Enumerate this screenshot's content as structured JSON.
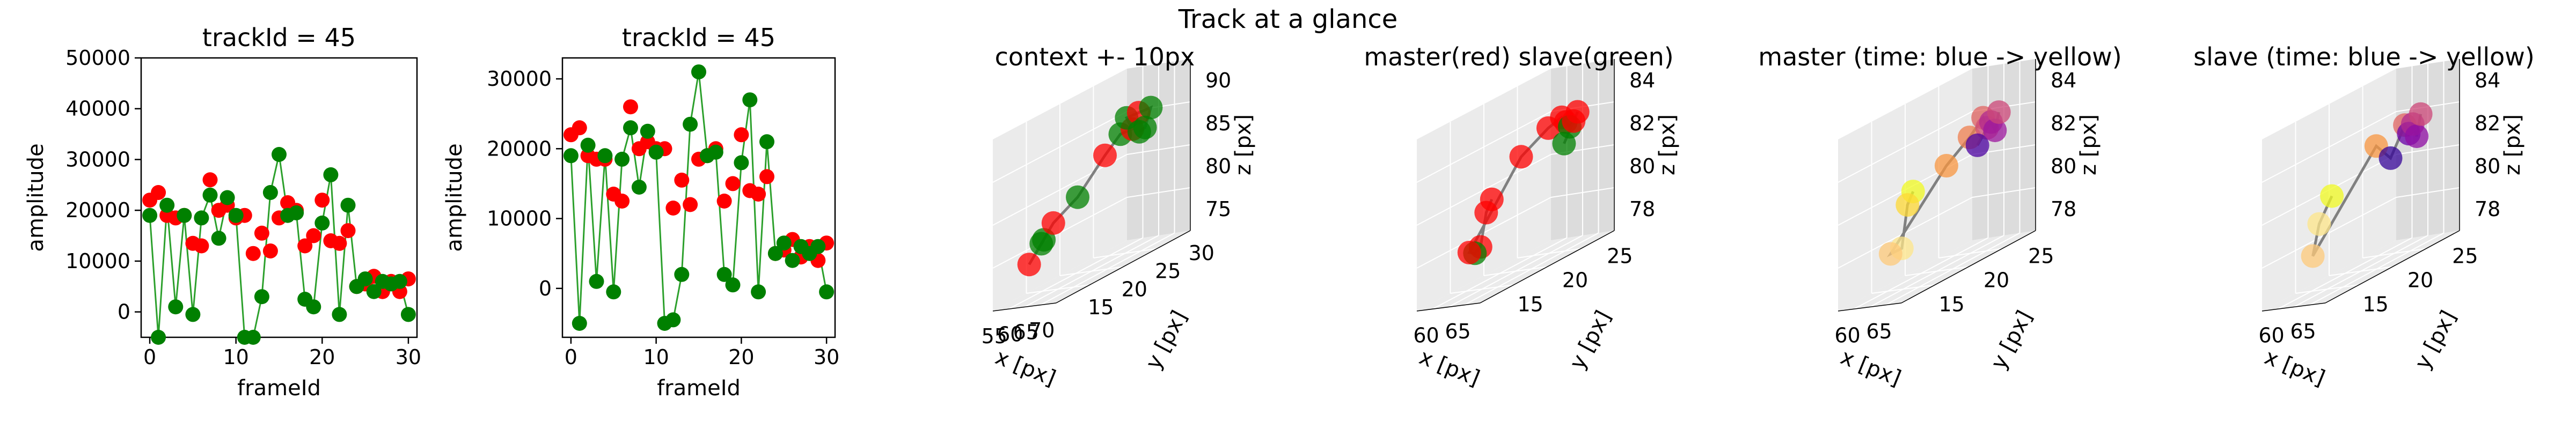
{
  "figure_title": "Track at a glance",
  "colors": {
    "red": "#ff0000",
    "green": "#008000",
    "line": "#2ca02c",
    "track": "#808080",
    "pane": "#ebebeb",
    "pane_dark": "#dcdcdc",
    "grid": "#ffffff"
  },
  "chart_data": [
    {
      "type": "scatter",
      "title": "trackId = 45",
      "xlabel": "frameId",
      "ylabel": "amplitude",
      "xlim": [
        -1,
        31
      ],
      "ylim": [
        -5000,
        50000
      ],
      "xticks": [
        0,
        10,
        20,
        30
      ],
      "yticks": [
        0,
        10000,
        20000,
        30000,
        40000,
        50000
      ],
      "series": [
        {
          "color": "red",
          "marker": "circle",
          "line": false,
          "x": [
            0,
            1,
            2,
            3,
            4,
            5,
            6,
            7,
            8,
            9,
            10,
            11,
            12,
            13,
            14,
            15,
            16,
            17,
            18,
            19,
            20,
            21,
            22,
            23,
            24,
            25,
            26,
            27,
            28,
            29,
            30
          ],
          "y": [
            22000,
            23500,
            19000,
            18500,
            19000,
            13500,
            13000,
            26000,
            20000,
            21000,
            18500,
            19000,
            11500,
            15500,
            12000,
            18500,
            21500,
            20000,
            13000,
            15000,
            22000,
            14000,
            13500,
            16000,
            5000,
            5500,
            7000,
            4000,
            6000,
            4000,
            6500
          ]
        },
        {
          "color": "green",
          "marker": "circle",
          "line": true,
          "x": [
            0,
            1,
            2,
            3,
            4,
            5,
            6,
            7,
            8,
            9,
            10,
            11,
            12,
            13,
            14,
            15,
            16,
            17,
            18,
            19,
            20,
            21,
            22,
            23,
            24,
            25,
            26,
            27,
            28,
            29,
            30
          ],
          "y": [
            19000,
            -5000,
            21000,
            1000,
            19000,
            -500,
            18500,
            23000,
            14500,
            22500,
            19000,
            -5000,
            -5000,
            3000,
            23500,
            31000,
            19000,
            19500,
            2500,
            1000,
            17500,
            27000,
            -500,
            21000,
            5000,
            6500,
            4000,
            6000,
            5500,
            6000,
            -500
          ]
        }
      ]
    },
    {
      "type": "scatter",
      "title": "trackId = 45",
      "xlabel": "frameId",
      "ylabel": "amplitude",
      "xlim": [
        -1,
        31
      ],
      "ylim": [
        -7000,
        33000
      ],
      "xticks": [
        0,
        10,
        20,
        30
      ],
      "yticks": [
        0,
        10000,
        20000,
        30000
      ],
      "series": [
        {
          "color": "red",
          "marker": "circle",
          "line": false,
          "x": [
            0,
            1,
            2,
            3,
            4,
            5,
            6,
            7,
            8,
            9,
            10,
            11,
            12,
            13,
            14,
            15,
            16,
            17,
            18,
            19,
            20,
            21,
            22,
            23,
            24,
            25,
            26,
            27,
            28,
            29,
            30
          ],
          "y": [
            22000,
            23000,
            19000,
            18500,
            18500,
            13500,
            12500,
            26000,
            20000,
            21000,
            20000,
            20000,
            11500,
            15500,
            12000,
            18500,
            19000,
            20000,
            12500,
            15000,
            22000,
            14000,
            13500,
            16000,
            5000,
            5500,
            7000,
            4500,
            6000,
            4000,
            6500
          ]
        },
        {
          "color": "green",
          "marker": "circle",
          "line": true,
          "x": [
            0,
            1,
            2,
            3,
            4,
            5,
            6,
            7,
            8,
            9,
            10,
            11,
            12,
            13,
            14,
            15,
            16,
            17,
            18,
            19,
            20,
            21,
            22,
            23,
            24,
            25,
            26,
            27,
            28,
            29,
            30
          ],
          "y": [
            19000,
            -5000,
            20500,
            1000,
            19000,
            -500,
            18500,
            23000,
            14500,
            22500,
            19500,
            -5000,
            -4500,
            2000,
            23500,
            31000,
            19000,
            19500,
            2000,
            500,
            18000,
            27000,
            -500,
            21000,
            5000,
            6500,
            4000,
            6000,
            5000,
            6000,
            -500
          ]
        }
      ]
    },
    {
      "type": "scatter3d",
      "title": "context +- 10px",
      "xlabel": "x [px]",
      "ylabel": "y [px]",
      "zlabel": "z [px]",
      "xticks": [
        "55",
        "60",
        "65",
        "70"
      ],
      "yticks": [
        "15",
        "20",
        "25",
        "30"
      ],
      "zticks": [
        "75",
        "80",
        "85",
        "90"
      ],
      "points": [
        {
          "x": 55,
          "y": 20,
          "z": 76,
          "color": "green"
        },
        {
          "x": 56,
          "y": 18,
          "z": 75,
          "color": "red"
        },
        {
          "x": 57,
          "y": 19,
          "z": 76,
          "color": "green"
        },
        {
          "x": 58,
          "y": 20,
          "z": 77,
          "color": "red"
        },
        {
          "x": 60,
          "y": 22,
          "z": 78,
          "color": "green"
        },
        {
          "x": 63,
          "y": 24,
          "z": 80,
          "color": "red"
        },
        {
          "x": 65,
          "y": 25,
          "z": 81,
          "color": "green"
        },
        {
          "x": 66,
          "y": 26,
          "z": 81,
          "color": "red"
        },
        {
          "x": 67,
          "y": 25,
          "z": 82,
          "color": "green"
        },
        {
          "x": 68,
          "y": 26,
          "z": 82,
          "color": "red"
        },
        {
          "x": 69,
          "y": 27,
          "z": 82,
          "color": "green"
        },
        {
          "x": 70,
          "y": 26,
          "z": 81,
          "color": "green"
        },
        {
          "x": 71,
          "y": 25,
          "z": 81,
          "color": "green"
        }
      ]
    },
    {
      "type": "scatter3d",
      "title": "master(red) slave(green)",
      "xlabel": "x [px]",
      "ylabel": "y [px]",
      "zlabel": "z [px]",
      "xticks": [
        "60",
        "65"
      ],
      "yticks": [
        "15",
        "20",
        "25"
      ],
      "zticks": [
        "78",
        "80",
        "82",
        "84"
      ],
      "points": [
        {
          "x": 57,
          "y": 21,
          "z": 80.5,
          "color": "red"
        },
        {
          "x": 58,
          "y": 20,
          "z": 80,
          "color": "red"
        },
        {
          "x": 59,
          "y": 19,
          "z": 78.3,
          "color": "red"
        },
        {
          "x": 60,
          "y": 18,
          "z": 78.2,
          "color": "green"
        },
        {
          "x": 61,
          "y": 17,
          "z": 78.5,
          "color": "red"
        },
        {
          "x": 62,
          "y": 22,
          "z": 82.5,
          "color": "red"
        },
        {
          "x": 64,
          "y": 24,
          "z": 83.5,
          "color": "red"
        },
        {
          "x": 65,
          "y": 25,
          "z": 83.8,
          "color": "red"
        },
        {
          "x": 66,
          "y": 25,
          "z": 83.5,
          "color": "red"
        },
        {
          "x": 67,
          "y": 25,
          "z": 83.2,
          "color": "green"
        },
        {
          "x": 68,
          "y": 25,
          "z": 83.5,
          "color": "red"
        },
        {
          "x": 68,
          "y": 24,
          "z": 82.5,
          "color": "green"
        },
        {
          "x": 69,
          "y": 25,
          "z": 84,
          "color": "red"
        }
      ]
    },
    {
      "type": "scatter3d",
      "title": "master (time: blue -> yellow)",
      "xlabel": "x [px]",
      "ylabel": "y [px]",
      "zlabel": "z [px]",
      "xticks": [
        "60",
        "65"
      ],
      "yticks": [
        "15",
        "20",
        "25"
      ],
      "zticks": [
        "78",
        "80",
        "82",
        "84"
      ],
      "points": [
        {
          "x": 57,
          "y": 21,
          "z": 81,
          "color": "#f0f921"
        },
        {
          "x": 58,
          "y": 20,
          "z": 80.5,
          "color": "#fdd835"
        },
        {
          "x": 59,
          "y": 19,
          "z": 78.3,
          "color": "#fde68a"
        },
        {
          "x": 61,
          "y": 17,
          "z": 78.5,
          "color": "#fdca7a"
        },
        {
          "x": 63,
          "y": 22,
          "z": 82,
          "color": "#f89540"
        },
        {
          "x": 64,
          "y": 24,
          "z": 83,
          "color": "#ef7f4f"
        },
        {
          "x": 65,
          "y": 25,
          "z": 83.8,
          "color": "#e16462"
        },
        {
          "x": 66,
          "y": 25,
          "z": 83.2,
          "color": "#d24d7a"
        },
        {
          "x": 66,
          "y": 24,
          "z": 82.5,
          "color": "#4c02a1"
        },
        {
          "x": 67,
          "y": 25,
          "z": 83.5,
          "color": "#b12a90"
        },
        {
          "x": 68,
          "y": 25,
          "z": 83,
          "color": "#9c179e"
        },
        {
          "x": 69,
          "y": 25,
          "z": 84,
          "color": "#cc4778"
        }
      ]
    },
    {
      "type": "scatter3d",
      "title": "slave (time: blue -> yellow)",
      "xlabel": "x [px]",
      "ylabel": "y [px]",
      "zlabel": "z [px]",
      "xticks": [
        "60",
        "65"
      ],
      "yticks": [
        "15",
        "20",
        "25"
      ],
      "zticks": [
        "78",
        "80",
        "82",
        "84"
      ],
      "points": [
        {
          "x": 57,
          "y": 21,
          "z": 81,
          "color": "#f0f921"
        },
        {
          "x": 59,
          "y": 19,
          "z": 80,
          "color": "#fde68a"
        },
        {
          "x": 60,
          "y": 18,
          "z": 78.5,
          "color": "#fdca7a"
        },
        {
          "x": 63,
          "y": 23,
          "z": 83,
          "color": "#f89540"
        },
        {
          "x": 64,
          "y": 24,
          "z": 82,
          "color": "#350498"
        },
        {
          "x": 65,
          "y": 25,
          "z": 83.5,
          "color": "#e16462"
        },
        {
          "x": 66,
          "y": 25,
          "z": 83,
          "color": "#6a00a8"
        },
        {
          "x": 67,
          "y": 25,
          "z": 83.5,
          "color": "#b12a90"
        },
        {
          "x": 68,
          "y": 25,
          "z": 82.8,
          "color": "#8f0da4"
        },
        {
          "x": 69,
          "y": 25,
          "z": 84,
          "color": "#cc4778"
        }
      ]
    }
  ]
}
